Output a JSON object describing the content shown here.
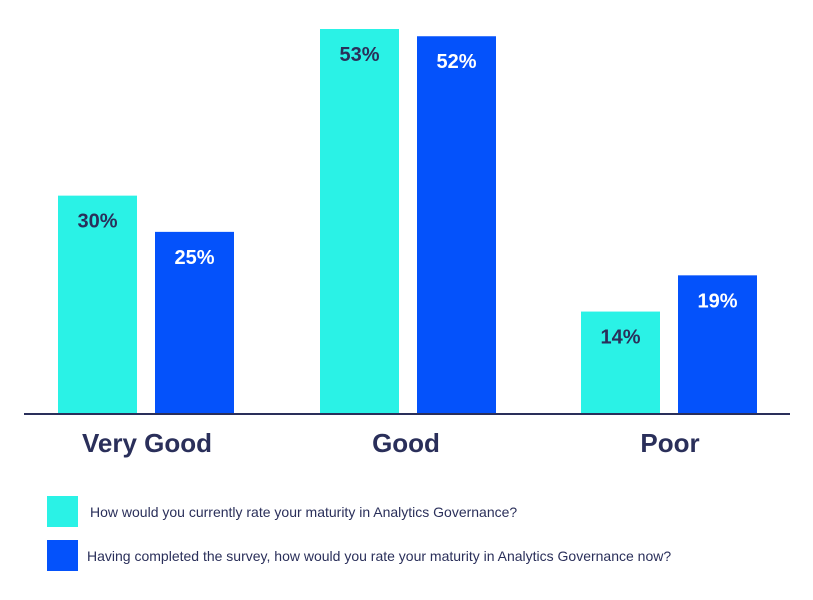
{
  "chart_data": {
    "type": "bar",
    "categories": [
      "Very Good",
      "Good",
      "Poor"
    ],
    "series": [
      {
        "name": "How would you currently rate your maturity in Analytics Governance?",
        "values": [
          30,
          53,
          14
        ],
        "labels": [
          "30%",
          "53%",
          "14%"
        ],
        "color": "#2af2e6"
      },
      {
        "name": "Having completed the survey, how would you rate your maturity in Analytics Governance now?",
        "values": [
          25,
          52,
          19
        ],
        "labels": [
          "25%",
          "52%",
          "19%"
        ],
        "color": "#0452fb"
      }
    ],
    "ylim": [
      0,
      55
    ],
    "grid": false,
    "legend_position": "bottom-left",
    "colors": {
      "axis": "#2a2f5a",
      "category_label": "#2a2f5a",
      "value_label_on_light": "#2a2f5a",
      "value_label_on_dark": "#ffffff"
    }
  }
}
